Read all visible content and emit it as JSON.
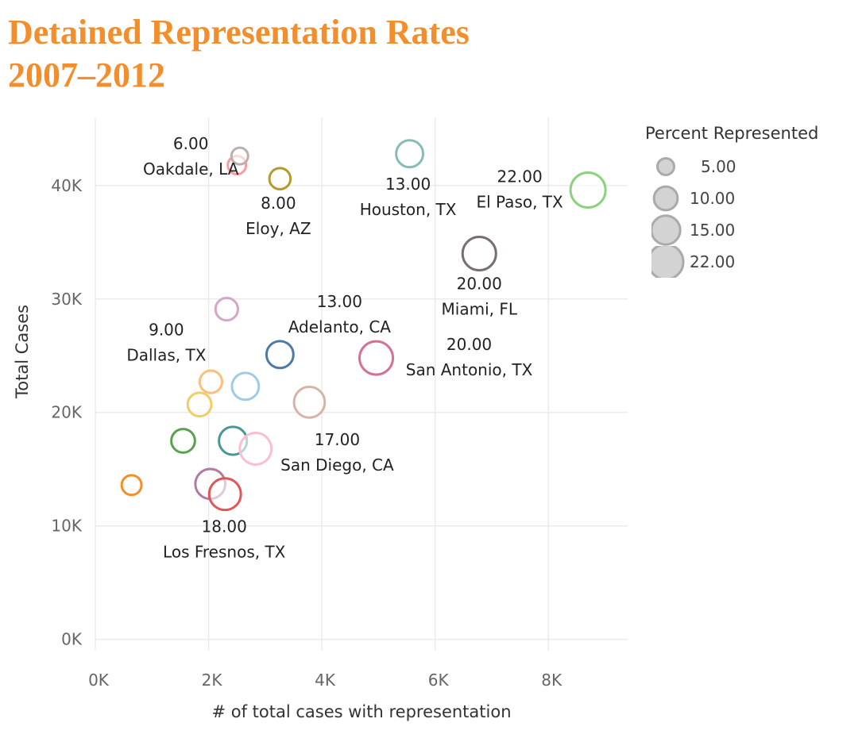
{
  "title": {
    "line1": "Detained Representation Rates",
    "line2": "2007–2012"
  },
  "colors": {
    "title": "#F28E2B",
    "grid": "#ebebeb",
    "tick_label": "#666666",
    "legend_circle_stroke": "#aaaaaa",
    "legend_circle_fill": "#d3d3d3"
  },
  "chart_data": {
    "type": "scatter",
    "title": "Detained Representation Rates 2007–2012",
    "xlabel": "# of total cases with representation",
    "ylabel": "Total Cases",
    "xlim": [
      0,
      9400
    ],
    "ylim": [
      -1000,
      46000
    ],
    "x_ticks": [
      {
        "value": 0,
        "label": "0K"
      },
      {
        "value": 2000,
        "label": "2K"
      },
      {
        "value": 4000,
        "label": "4K"
      },
      {
        "value": 6000,
        "label": "6K"
      },
      {
        "value": 8000,
        "label": "8K"
      }
    ],
    "y_ticks": [
      {
        "value": 0,
        "label": "0K"
      },
      {
        "value": 10000,
        "label": "10K"
      },
      {
        "value": 20000,
        "label": "20K"
      },
      {
        "value": 30000,
        "label": "30K"
      },
      {
        "value": 40000,
        "label": "40K"
      }
    ],
    "grid": true,
    "size_encoding": "Percent Represented",
    "points": [
      {
        "name": "Oakdale, LA",
        "label": "Oakdale, LA",
        "pct_label": "6.00",
        "x": 2500,
        "y": 41800,
        "pct": 6,
        "color": "#F89C9C"
      },
      {
        "name": "",
        "x": 2550,
        "y": 42600,
        "pct": 5,
        "color": "#BAB0AC"
      },
      {
        "name": "Eloy, AZ",
        "label": "Eloy, AZ",
        "pct_label": "8.00",
        "x": 3260,
        "y": 40600,
        "pct": 8,
        "color": "#B6992D"
      },
      {
        "name": "Houston, TX",
        "label": "Houston, TX",
        "pct_label": "13.00",
        "x": 5550,
        "y": 42800,
        "pct": 13,
        "color": "#86BCB6"
      },
      {
        "name": "El Paso, TX",
        "label": "El Paso, TX",
        "pct_label": "22.00",
        "x": 8700,
        "y": 39600,
        "pct": 22,
        "color": "#8CD17D"
      },
      {
        "name": "Miami, FL",
        "label": "Miami, FL",
        "pct_label": "20.00",
        "x": 6780,
        "y": 34000,
        "pct": 20,
        "color": "#79706E"
      },
      {
        "name": "Dallas, TX",
        "label": "Dallas, TX",
        "pct_label": "9.00",
        "x": 2320,
        "y": 29100,
        "pct": 9,
        "color": "#D4A6C8"
      },
      {
        "name": "Adelanto, CA",
        "label": "Adelanto, CA",
        "pct_label": "13.00",
        "x": 3260,
        "y": 25100,
        "pct": 13,
        "color": "#4E79A7"
      },
      {
        "name": "San Antonio, TX",
        "label": "San Antonio, TX",
        "pct_label": "20.00",
        "x": 4960,
        "y": 24800,
        "pct": 20,
        "color": "#D37295"
      },
      {
        "name": "",
        "x": 2040,
        "y": 22700,
        "pct": 9,
        "color": "#FFBE7D"
      },
      {
        "name": "",
        "x": 2650,
        "y": 22300,
        "pct": 13,
        "color": "#A0CBE8"
      },
      {
        "name": "",
        "x": 1840,
        "y": 20700,
        "pct": 10,
        "color": "#F1CE63"
      },
      {
        "name": "San Diego, CA",
        "label": "San Diego, CA",
        "pct_label": "17.00",
        "x": 3780,
        "y": 20900,
        "pct": 17,
        "color": "#D7B5A6"
      },
      {
        "name": "",
        "x": 1550,
        "y": 17500,
        "pct": 10,
        "color": "#59A14F"
      },
      {
        "name": "",
        "x": 2430,
        "y": 17500,
        "pct": 14,
        "color": "#499894"
      },
      {
        "name": "",
        "x": 2830,
        "y": 16800,
        "pct": 18,
        "color": "#FABFD2"
      },
      {
        "name": "",
        "x": 640,
        "y": 13600,
        "pct": 7,
        "color": "#F28E2B"
      },
      {
        "name": "",
        "x": 2030,
        "y": 13700,
        "pct": 16,
        "color": "#B07AA1"
      },
      {
        "name": "Los Fresnos, TX",
        "label": "Los Fresnos, TX",
        "pct_label": "18.00",
        "x": 2290,
        "y": 12800,
        "pct": 18,
        "color": "#E15759"
      }
    ],
    "legend": {
      "title": "Percent Represented",
      "position": "right",
      "items": [
        {
          "label": "5.00",
          "pct": 5
        },
        {
          "label": "10.00",
          "pct": 10
        },
        {
          "label": "15.00",
          "pct": 15
        },
        {
          "label": "22.00",
          "pct": 22
        }
      ]
    }
  }
}
